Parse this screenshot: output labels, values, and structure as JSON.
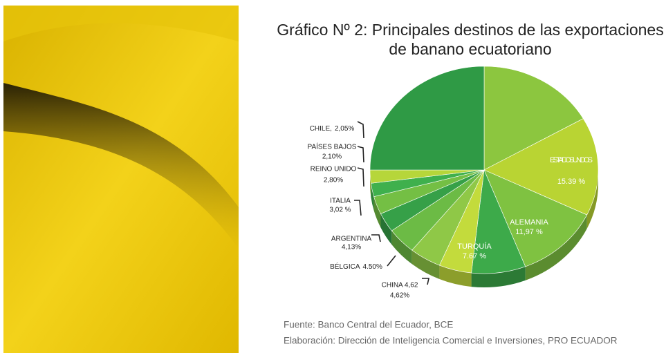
{
  "chart_data": {
    "type": "pie",
    "title": "Gráfico Nº 2: Principales destinos de las exportaciones",
    "subtitle": "de banano ecuatoriano",
    "categories": [
      null,
      "ESTADOS UNIDOS",
      "ALEMANIA",
      "TURQUÍA",
      "CHINA 4,62",
      "BÉLGICA",
      "ARGENTINA",
      "ITALIA",
      "REINO UNIDO",
      "PAÍSES BAJOS",
      "CHILE,",
      null
    ],
    "values": [
      16.75,
      15.39,
      11.97,
      7.67,
      4.62,
      4.5,
      4.13,
      3.02,
      2.8,
      2.1,
      2.05,
      25.0
    ],
    "value_labels": [
      null,
      "15.39 %",
      "11,97 %",
      "7.67 %",
      "4,62%",
      "4.50%",
      "4,13%",
      "3,02 %",
      "2,80%",
      "2,10%",
      "2,05%",
      null
    ],
    "colors": [
      "#8cc63f",
      "#b9d433",
      "#7fc241",
      "#3daa4a",
      "#c3db3c",
      "#8fc847",
      "#6cbb45",
      "#36a048",
      "#74bf44",
      "#3fb04d",
      "#b6d63a",
      "#2f9a45"
    ],
    "sources": [
      "Fuente: Banco Central del Ecuador, BCE",
      "Elaboración: Dirección de Inteligencia Comercial e Inversiones, PRO ECUADOR"
    ]
  }
}
